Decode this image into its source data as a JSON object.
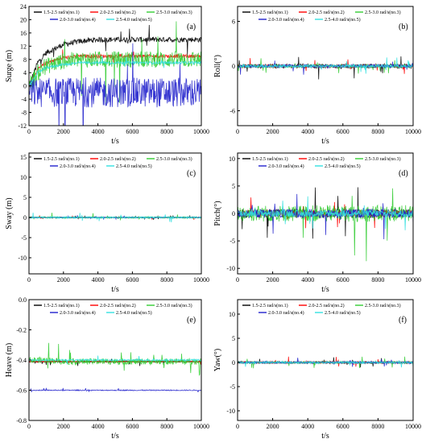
{
  "figure": {
    "description_labels": [
      "(a)",
      "(b)",
      "(c)",
      "(d)",
      "(e)",
      "(f)"
    ]
  },
  "chart_data": [
    {
      "type": "line",
      "panel_label": "(a)",
      "ylabel": "Surge (m)",
      "xlabel": "t/s",
      "xlim": [
        0,
        10000
      ],
      "ylim": [
        -12,
        24
      ],
      "xticks": [
        0,
        2000,
        4000,
        6000,
        8000,
        10000
      ],
      "yticks": [
        -12,
        -8,
        -4,
        0,
        4,
        8,
        12,
        16,
        20,
        24
      ],
      "legend": "top, 3 columns",
      "series": [
        {
          "name": "1.5-2.5 rad/s(no.1)",
          "color": "#000000",
          "x": [
            0,
            500,
            1000,
            2000,
            3000,
            4000,
            5000,
            6000,
            7000,
            8000,
            9000,
            10000
          ],
          "values": [
            0,
            7,
            10,
            12.5,
            13.5,
            14,
            14,
            14,
            14,
            14,
            14,
            14
          ],
          "noise": 0.8
        },
        {
          "name": "2.0-2.5 rad/s(no.2)",
          "color": "#ff0000",
          "x": [
            0,
            500,
            1000,
            2000,
            3000,
            4000,
            5000,
            6000,
            7000,
            8000,
            9000,
            10000
          ],
          "values": [
            0,
            5,
            7,
            8.5,
            9,
            9,
            9,
            9,
            9,
            9,
            9,
            9
          ],
          "noise": 0.5
        },
        {
          "name": "2.5-3.0 rad/s(no.3)",
          "color": "#33cc33",
          "x": [
            0,
            500,
            1000,
            2000,
            3000,
            4000,
            5000,
            6000,
            7000,
            8000,
            9000,
            10000
          ],
          "values": [
            0,
            4,
            6,
            7.5,
            8,
            8,
            8,
            8,
            8,
            8,
            8,
            8
          ],
          "noise": 2.5
        },
        {
          "name": "2.0-3.0 rad/s(no.4)",
          "color": "#2222cc",
          "x": [
            0,
            500,
            1000,
            2000,
            3000,
            4000,
            5000,
            6000,
            7000,
            8000,
            9000,
            10000
          ],
          "values": [
            -2,
            -2,
            -2,
            -2,
            -2,
            -2,
            -2,
            -2,
            -2,
            -2,
            -2,
            -2
          ],
          "noise": 4.5
        },
        {
          "name": "2.5-4.0 rad/s(no.5)",
          "color": "#33e0e0",
          "x": [
            0,
            500,
            1000,
            2000,
            3000,
            4000,
            5000,
            6000,
            7000,
            8000,
            9000,
            10000
          ],
          "values": [
            0,
            4,
            5.5,
            6.5,
            7,
            7,
            7,
            7,
            7,
            7,
            7,
            7
          ],
          "noise": 0.4
        }
      ]
    },
    {
      "type": "line",
      "panel_label": "(b)",
      "ylabel": "Roll(°)",
      "xlabel": "t/s",
      "xlim": [
        0,
        10000
      ],
      "ylim": [
        -8,
        8
      ],
      "xticks": [
        0,
        2000,
        4000,
        6000,
        8000,
        10000
      ],
      "yticks": [
        -6,
        0,
        6
      ],
      "legend": "top, 3 columns",
      "series": [
        {
          "name": "1.5-2.5 rad/s(no.1)",
          "color": "#000000",
          "x": [
            0,
            10000
          ],
          "values": [
            0,
            0
          ],
          "noise": 0.3
        },
        {
          "name": "2.0-2.5 rad/s(no.2)",
          "color": "#ff0000",
          "x": [
            0,
            10000
          ],
          "values": [
            0,
            0
          ],
          "noise": 0.2
        },
        {
          "name": "2.5-3.0 rad/s(no.3)",
          "color": "#33cc33",
          "x": [
            0,
            10000
          ],
          "values": [
            0,
            0
          ],
          "noise": 0.2
        },
        {
          "name": "2.0-3.0 rad/s(no.4)",
          "color": "#2222cc",
          "x": [
            0,
            10000
          ],
          "values": [
            0,
            0
          ],
          "noise": 0.2
        },
        {
          "name": "2.5-4.0 rad/s(no.5)",
          "color": "#33e0e0",
          "x": [
            0,
            10000
          ],
          "values": [
            0,
            0
          ],
          "noise": 0.2
        }
      ]
    },
    {
      "type": "line",
      "panel_label": "(c)",
      "ylabel": "Sway (m)",
      "xlabel": "t/s",
      "xlim": [
        0,
        10000
      ],
      "ylim": [
        -14,
        16
      ],
      "xticks": [
        0,
        2000,
        4000,
        6000,
        8000,
        10000
      ],
      "yticks": [
        -10,
        -5,
        0,
        5,
        10,
        15
      ],
      "legend": "top, 3 columns",
      "series": [
        {
          "name": "1.5-2.5 rad/s(no.1)",
          "color": "#000000",
          "x": [
            0,
            10000
          ],
          "values": [
            0,
            0
          ],
          "noise": 0.1
        },
        {
          "name": "2.0-2.5 rad/s(no.2)",
          "color": "#ff0000",
          "x": [
            0,
            10000
          ],
          "values": [
            0,
            0
          ],
          "noise": 0.1
        },
        {
          "name": "2.5-3.0 rad/s(no.3)",
          "color": "#33cc33",
          "x": [
            0,
            10000
          ],
          "values": [
            0,
            0
          ],
          "noise": 0.2
        },
        {
          "name": "2.0-3.0 rad/s(no.4)",
          "color": "#2222cc",
          "x": [
            0,
            10000
          ],
          "values": [
            0,
            0
          ],
          "noise": 0.1
        },
        {
          "name": "2.5-4.0 rad/s(no.5)",
          "color": "#33e0e0",
          "x": [
            0,
            10000
          ],
          "values": [
            0,
            0
          ],
          "noise": 0.2
        }
      ]
    },
    {
      "type": "line",
      "panel_label": "(d)",
      "ylabel": "Pitch(°)",
      "xlabel": "t/s",
      "xlim": [
        0,
        10000
      ],
      "ylim": [
        -11,
        11
      ],
      "xticks": [
        0,
        2000,
        4000,
        6000,
        8000,
        10000
      ],
      "yticks": [
        -10,
        -5,
        0,
        5,
        10
      ],
      "legend": "top, 3 columns",
      "series": [
        {
          "name": "1.5-2.5 rad/s(no.1)",
          "color": "#000000",
          "x": [
            0,
            10000
          ],
          "values": [
            0,
            0
          ],
          "noise": 0.8
        },
        {
          "name": "2.0-2.5 rad/s(no.2)",
          "color": "#ff0000",
          "x": [
            0,
            10000
          ],
          "values": [
            0,
            0
          ],
          "noise": 0.6
        },
        {
          "name": "2.5-3.0 rad/s(no.3)",
          "color": "#33cc33",
          "x": [
            0,
            10000
          ],
          "values": [
            0,
            0
          ],
          "noise": 1.5
        },
        {
          "name": "2.0-3.0 rad/s(no.4)",
          "color": "#2222cc",
          "x": [
            0,
            10000
          ],
          "values": [
            0,
            0
          ],
          "noise": 0.8
        },
        {
          "name": "2.5-4.0 rad/s(no.5)",
          "color": "#33e0e0",
          "x": [
            0,
            10000
          ],
          "values": [
            0,
            0
          ],
          "noise": 0.6
        }
      ]
    },
    {
      "type": "line",
      "panel_label": "(e)",
      "ylabel": "Heave (m)",
      "xlabel": "t/s",
      "xlim": [
        0,
        10000
      ],
      "ylim": [
        -0.8,
        0.0
      ],
      "xticks": [
        0,
        2000,
        4000,
        6000,
        8000,
        10000
      ],
      "yticks": [
        -0.8,
        -0.6,
        -0.4,
        -0.2,
        0.0
      ],
      "legend": "top, 3 columns",
      "series": [
        {
          "name": "1.5-2.5 rad/s(no.1)",
          "color": "#000000",
          "x": [
            0,
            10000
          ],
          "values": [
            -0.41,
            -0.41
          ],
          "noise": 0.005
        },
        {
          "name": "2.0-2.5 rad/s(no.2)",
          "color": "#ff0000",
          "x": [
            0,
            10000
          ],
          "values": [
            -0.41,
            -0.41
          ],
          "noise": 0.004
        },
        {
          "name": "2.5-3.0 rad/s(no.3)",
          "color": "#33cc33",
          "x": [
            0,
            1000,
            2000,
            10000
          ],
          "values": [
            -0.4,
            -0.4,
            -0.41,
            -0.41
          ],
          "noise": 0.02
        },
        {
          "name": "2.0-3.0 rad/s(no.4)",
          "color": "#2222cc",
          "x": [
            0,
            10000
          ],
          "values": [
            -0.6,
            -0.6
          ],
          "noise": 0.003
        },
        {
          "name": "2.5-4.0 rad/s(no.5)",
          "color": "#33e0e0",
          "x": [
            0,
            10000
          ],
          "values": [
            -0.4,
            -0.4
          ],
          "noise": 0.005
        }
      ]
    },
    {
      "type": "line",
      "panel_label": "(f)",
      "ylabel": "Yaw(°)",
      "xlabel": "t/s",
      "xlim": [
        0,
        10000
      ],
      "ylim": [
        -12,
        13
      ],
      "xticks": [
        0,
        2000,
        4000,
        6000,
        8000,
        10000
      ],
      "yticks": [
        -10,
        -5,
        0,
        5,
        10
      ],
      "legend": "top, 3 columns",
      "series": [
        {
          "name": "1.5-2.5 rad/s(no.1)",
          "color": "#000000",
          "x": [
            0,
            10000
          ],
          "values": [
            0,
            0
          ],
          "noise": 0.2
        },
        {
          "name": "2.0-2.5 rad/s(no.2)",
          "color": "#ff0000",
          "x": [
            0,
            10000
          ],
          "values": [
            0,
            0
          ],
          "noise": 0.2
        },
        {
          "name": "2.5-3.0 rad/s(no.3)",
          "color": "#33cc33",
          "x": [
            0,
            10000
          ],
          "values": [
            0,
            0
          ],
          "noise": 0.2
        },
        {
          "name": "2.0-3.0 rad/s(no.4)",
          "color": "#2222cc",
          "x": [
            0,
            10000
          ],
          "values": [
            0,
            0
          ],
          "noise": 0.2
        },
        {
          "name": "2.5-4.0 rad/s(no.5)",
          "color": "#33e0e0",
          "x": [
            0,
            10000
          ],
          "values": [
            0,
            0
          ],
          "noise": 0.2
        }
      ]
    }
  ]
}
